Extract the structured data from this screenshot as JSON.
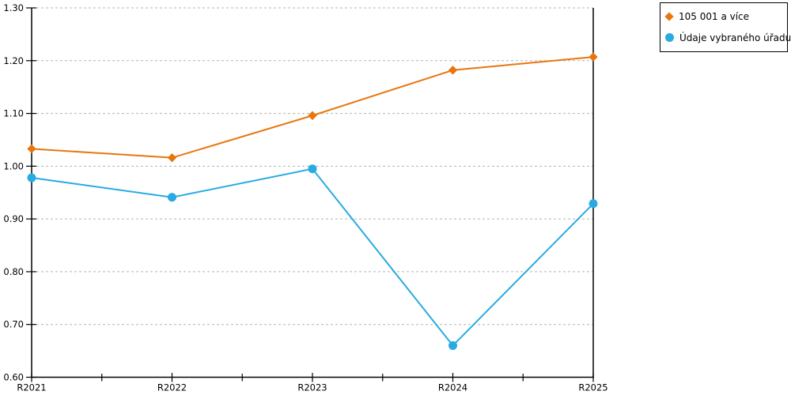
{
  "chart_data": {
    "type": "line",
    "title": "",
    "xlabel": "",
    "ylabel": "",
    "categories": [
      "R2021",
      "R2022",
      "R2023",
      "R2024",
      "R2025"
    ],
    "series": [
      {
        "name": "105 001 a více",
        "color": "#E8760D",
        "marker": "diamond",
        "values": [
          1.033,
          1.016,
          1.096,
          1.182,
          1.207
        ]
      },
      {
        "name": "Údaje vybraného úřadu",
        "color": "#29ABE2",
        "marker": "circle",
        "values": [
          0.978,
          0.941,
          0.995,
          0.66,
          0.929
        ]
      }
    ],
    "ylim": [
      0.6,
      1.3
    ],
    "ytick_step": 0.1,
    "ytick_labels": [
      "0.60",
      "0.70",
      "0.80",
      "0.90",
      "1.00",
      "1.10",
      "1.20",
      "1.30"
    ],
    "grid": "horizontal-dashed",
    "legend_position": "top-right",
    "colors": {
      "axis": "#000000",
      "grid": "#b3b3b3",
      "text": "#000000",
      "background": "#ffffff"
    }
  }
}
